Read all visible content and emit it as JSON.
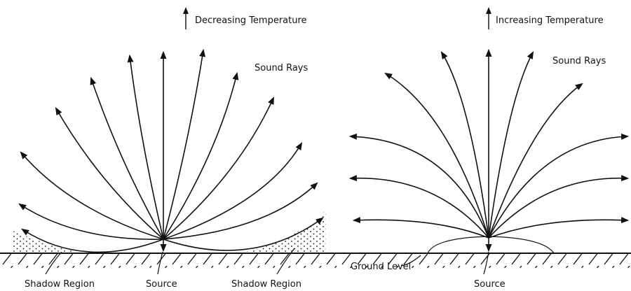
{
  "left": {
    "title": "Decreasing Temperature",
    "rays_label": "Sound Rays",
    "shadow_left": "Shadow Region",
    "source": "Source",
    "shadow_right": "Shadow Region"
  },
  "right": {
    "title": "Increasing Temperature",
    "rays_label": "Sound Rays",
    "ground": "Ground Level",
    "source": "Source"
  }
}
